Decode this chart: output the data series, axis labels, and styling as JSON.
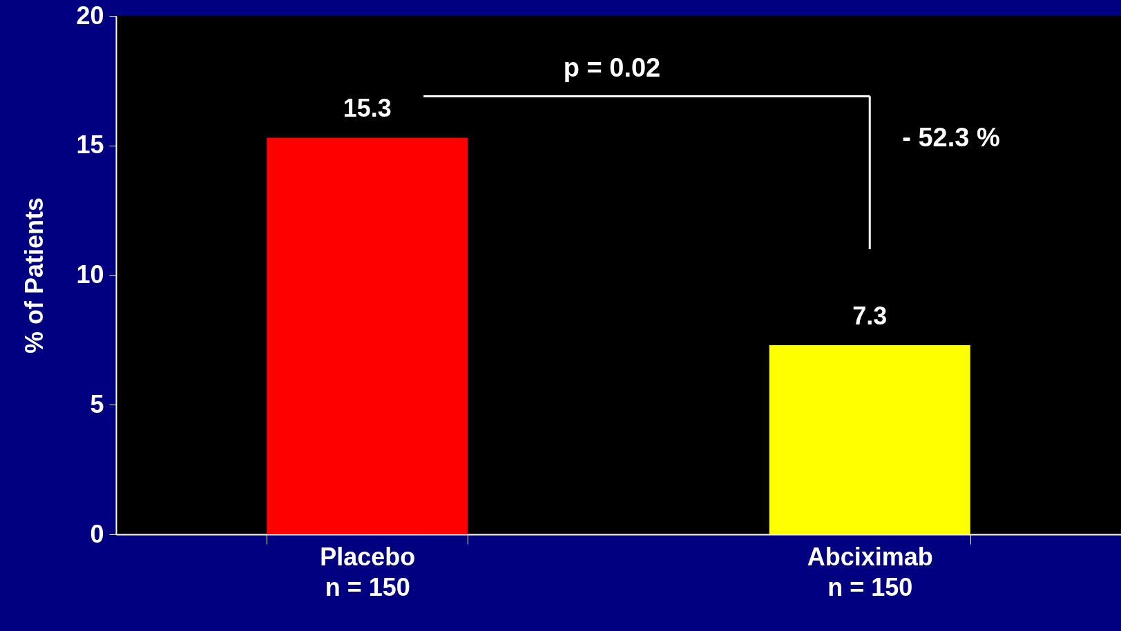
{
  "chart_data": {
    "type": "bar",
    "categories": [
      "Placebo\nn = 150",
      "Abciximab\nn = 150"
    ],
    "values": [
      15.3,
      7.3
    ],
    "colors": [
      "#ff0000",
      "#ffff00"
    ],
    "ylabel": "% of Patients",
    "ylim": [
      0,
      20
    ],
    "yticks": [
      0,
      5,
      10,
      15,
      20
    ],
    "data_labels": true,
    "grid": false,
    "legend": false,
    "annotations": [
      "p = 0.02",
      "- 52.3 %"
    ]
  }
}
